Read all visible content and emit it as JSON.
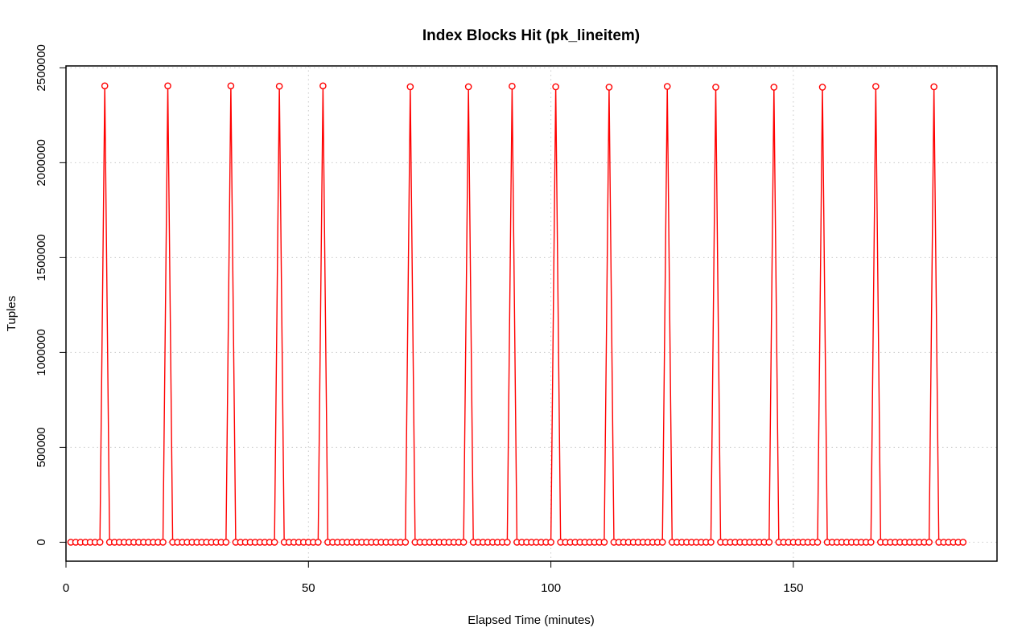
{
  "chart_data": {
    "type": "line",
    "title": "Index Blocks Hit (pk_lineitem)",
    "xlabel": "Elapsed Time (minutes)",
    "ylabel": "Tuples",
    "xlim": [
      0,
      192
    ],
    "ylim": [
      -100000,
      2510000
    ],
    "x_ticks": [
      0,
      50,
      100,
      150
    ],
    "y_ticks": [
      0,
      500000,
      1000000,
      1500000,
      2000000,
      2500000
    ],
    "x_tick_labels": [
      "0",
      "50",
      "100",
      "150"
    ],
    "y_tick_labels": [
      "0",
      "500000",
      "1000000",
      "1500000",
      "2000000",
      "2500000"
    ],
    "grid": true,
    "series": [
      {
        "color": "#ff0000",
        "marker": "open-circle",
        "line": true,
        "x_start": 1,
        "x_end": 185,
        "baseline": 0,
        "peaks": [
          {
            "x": 8,
            "y": 2405000
          },
          {
            "x": 21,
            "y": 2405000
          },
          {
            "x": 34,
            "y": 2405000
          },
          {
            "x": 44,
            "y": 2403000
          },
          {
            "x": 53,
            "y": 2405000
          },
          {
            "x": 71,
            "y": 2400000
          },
          {
            "x": 83,
            "y": 2400000
          },
          {
            "x": 92,
            "y": 2403000
          },
          {
            "x": 101,
            "y": 2400000
          },
          {
            "x": 112,
            "y": 2398000
          },
          {
            "x": 124,
            "y": 2402000
          },
          {
            "x": 134,
            "y": 2398000
          },
          {
            "x": 146,
            "y": 2398000
          },
          {
            "x": 156,
            "y": 2398000
          },
          {
            "x": 167,
            "y": 2402000
          },
          {
            "x": 179,
            "y": 2400000
          }
        ]
      }
    ]
  }
}
